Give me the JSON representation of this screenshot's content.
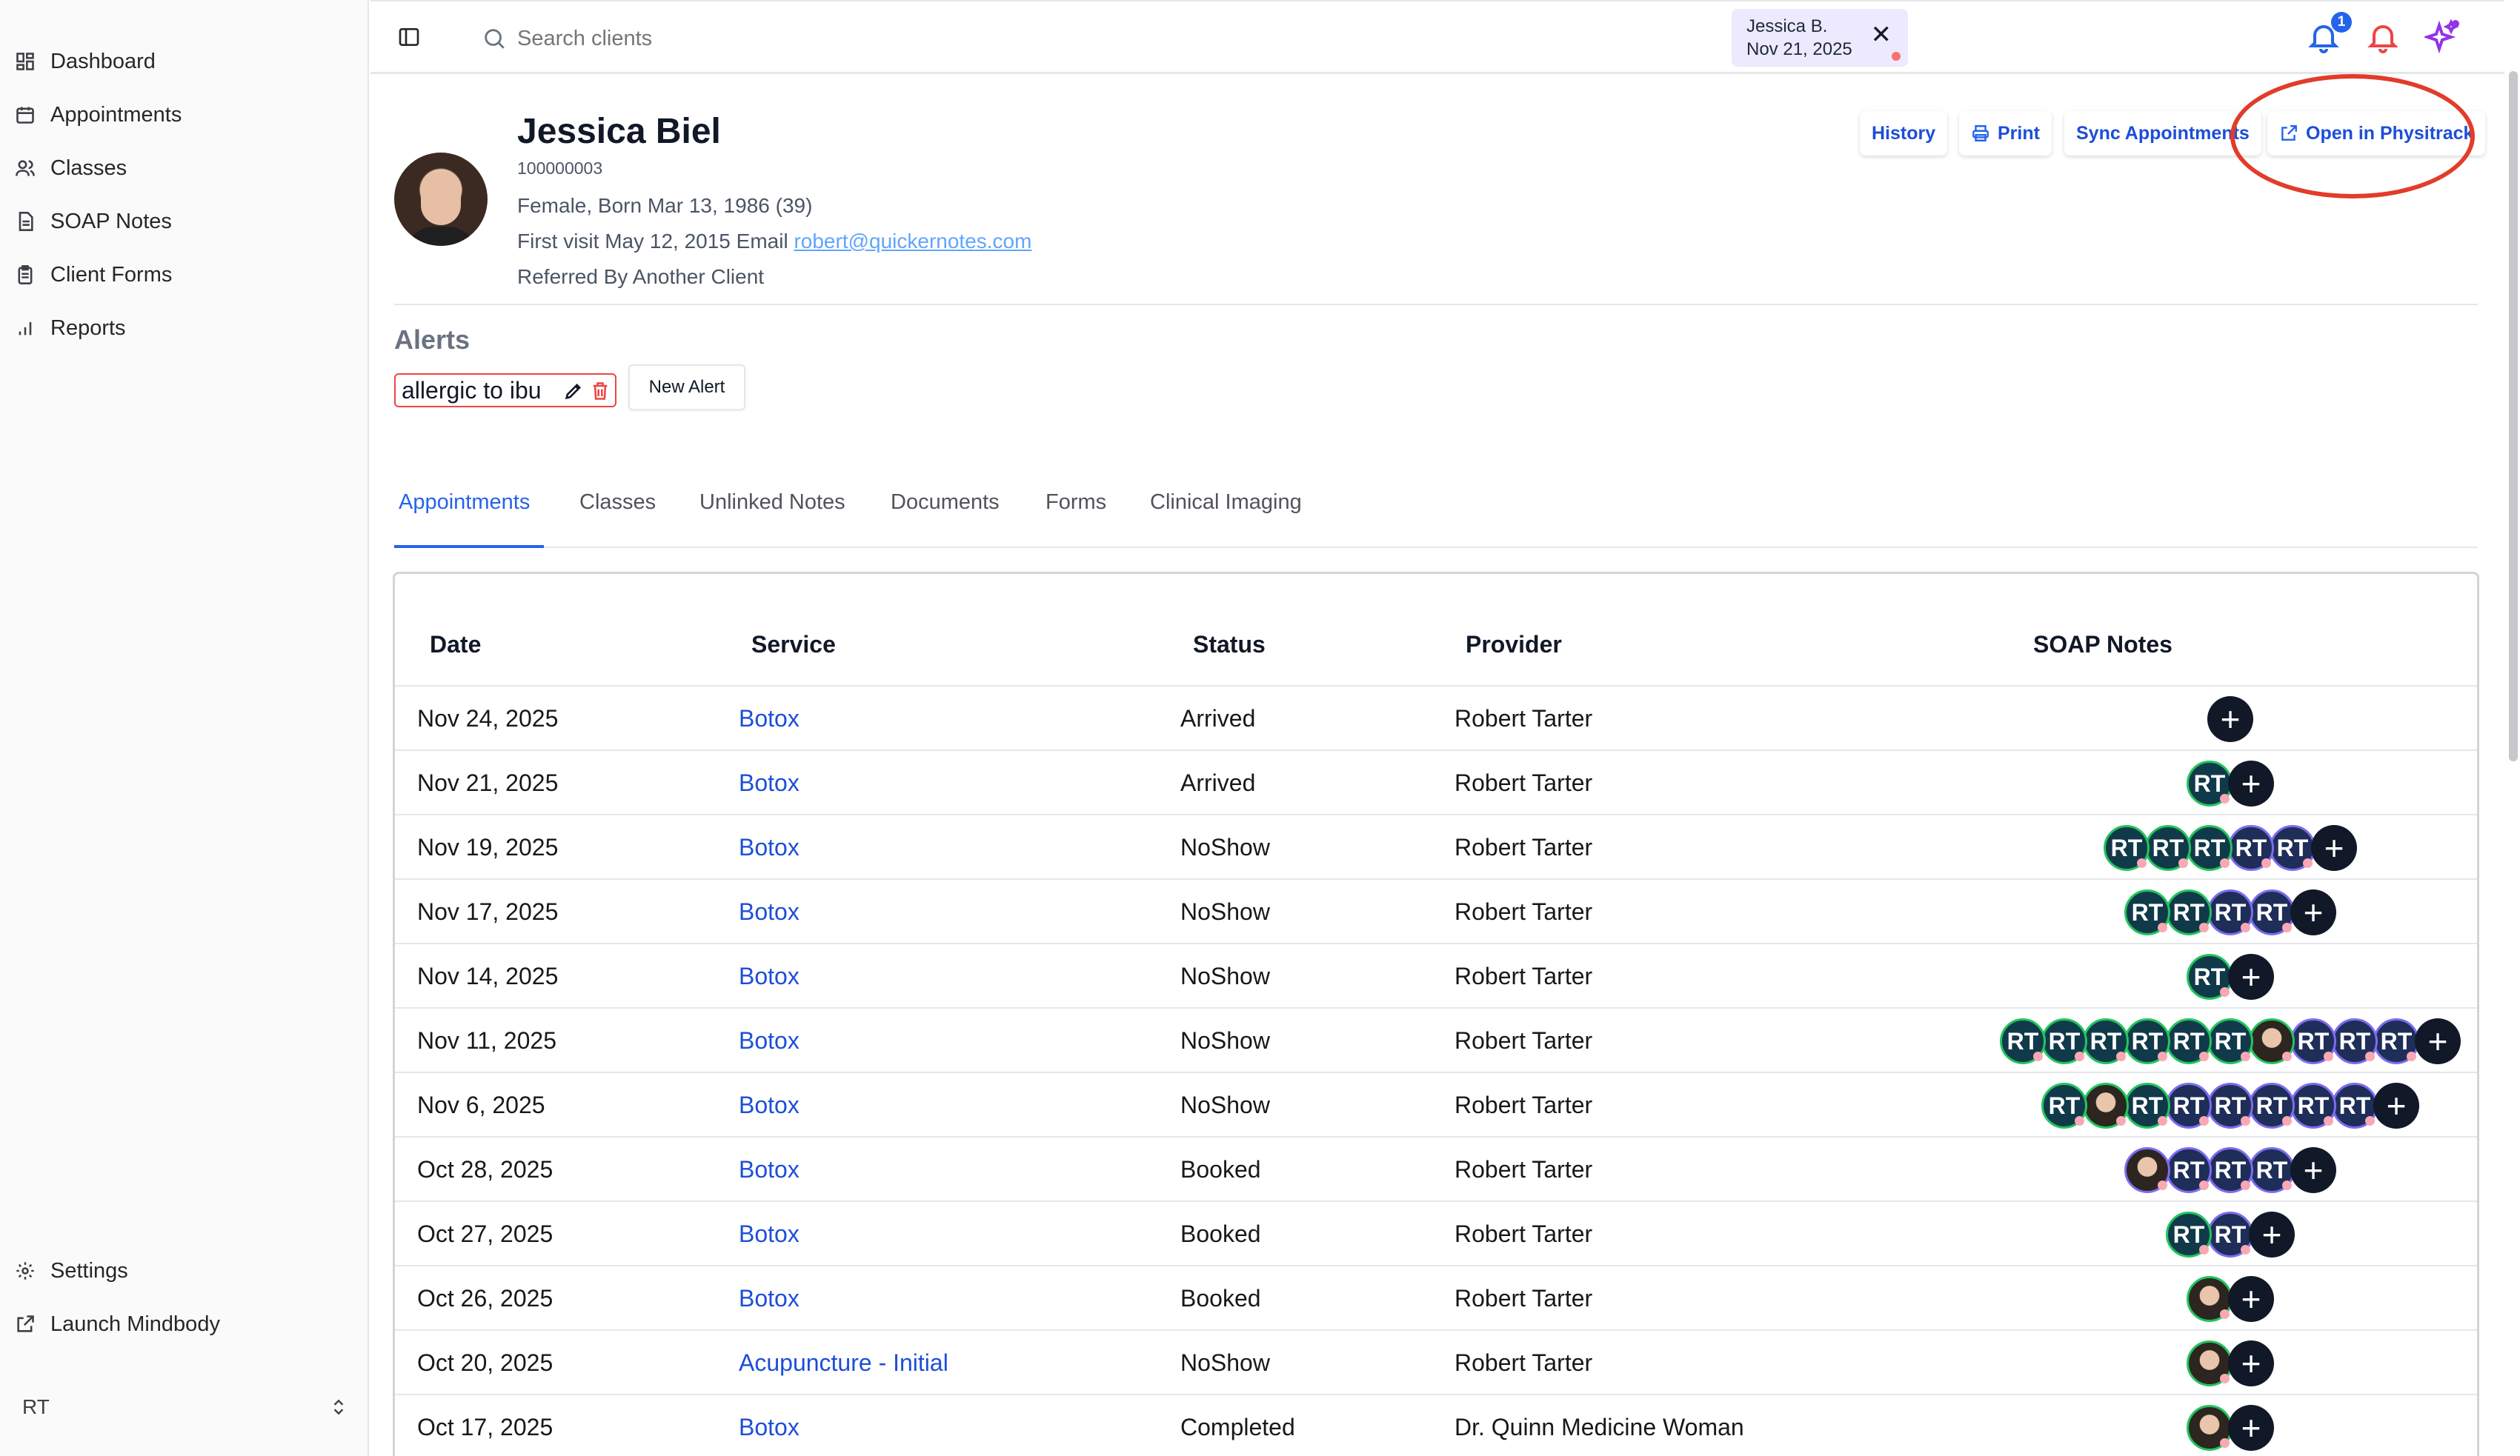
{
  "sidebar": {
    "items": [
      {
        "label": "Dashboard",
        "icon": "dashboard-icon"
      },
      {
        "label": "Appointments",
        "icon": "calendar-icon"
      },
      {
        "label": "Classes",
        "icon": "users-icon"
      },
      {
        "label": "SOAP Notes",
        "icon": "notes-icon"
      },
      {
        "label": "Client Forms",
        "icon": "clipboard-icon"
      },
      {
        "label": "Reports",
        "icon": "bar-chart-icon"
      }
    ],
    "bottom": [
      {
        "label": "Settings",
        "icon": "gear-icon"
      },
      {
        "label": "Launch Mindbody",
        "icon": "external-link-icon"
      }
    ],
    "user_initials": "RT"
  },
  "topbar": {
    "search_placeholder": "Search clients",
    "chip_name": "Jessica B.",
    "chip_date": "Nov 21, 2025",
    "notification_count": "1"
  },
  "client": {
    "name": "Jessica Biel",
    "id": "100000003",
    "demographics": "Female, Born Mar 13, 1986 (39)",
    "first_visit": "First visit May 12, 2015 Email",
    "email": "robert@quickernotes.com",
    "referred": "Referred By Another Client"
  },
  "actions": {
    "history": "History",
    "print": "Print",
    "sync": "Sync Appointments",
    "open": "Open in Physitrack"
  },
  "alerts": {
    "title": "Alerts",
    "items": [
      "allergic to ibu"
    ],
    "new_label": "New Alert"
  },
  "tabs": [
    "Appointments",
    "Classes",
    "Unlinked Notes",
    "Documents",
    "Forms",
    "Clinical Imaging"
  ],
  "table": {
    "headers": [
      "Date",
      "Service",
      "Status",
      "Provider",
      "SOAP Notes"
    ],
    "rows": [
      {
        "date": "Nov 24, 2025",
        "service": "Botox",
        "status": "Arrived",
        "provider": "Robert Tarter",
        "notes": []
      },
      {
        "date": "Nov 21, 2025",
        "service": "Botox",
        "status": "Arrived",
        "provider": "Robert Tarter",
        "notes": [
          "rt-g"
        ]
      },
      {
        "date": "Nov 19, 2025",
        "service": "Botox",
        "status": "NoShow",
        "provider": "Robert Tarter",
        "notes": [
          "rt-g",
          "rt-g",
          "rt-g",
          "rt-p",
          "rt-p"
        ]
      },
      {
        "date": "Nov 17, 2025",
        "service": "Botox",
        "status": "NoShow",
        "provider": "Robert Tarter",
        "notes": [
          "rt-g",
          "rt-g",
          "rt-p",
          "rt-p"
        ]
      },
      {
        "date": "Nov 14, 2025",
        "service": "Botox",
        "status": "NoShow",
        "provider": "Robert Tarter",
        "notes": [
          "rt-g"
        ]
      },
      {
        "date": "Nov 11, 2025",
        "service": "Botox",
        "status": "NoShow",
        "provider": "Robert Tarter",
        "notes": [
          "rt-g",
          "rt-g",
          "rt-g",
          "rt-g",
          "rt-g",
          "rt-g",
          "face",
          "rt-p",
          "rt-p",
          "rt-p"
        ]
      },
      {
        "date": "Nov 6, 2025",
        "service": "Botox",
        "status": "NoShow",
        "provider": "Robert Tarter",
        "notes": [
          "rt-g",
          "face",
          "rt-g",
          "rt-p",
          "rt-p",
          "rt-p",
          "rt-p",
          "rt-p"
        ]
      },
      {
        "date": "Oct 28, 2025",
        "service": "Botox",
        "status": "Booked",
        "provider": "Robert Tarter",
        "notes": [
          "face-p",
          "rt-p",
          "rt-p",
          "rt-p"
        ]
      },
      {
        "date": "Oct 27, 2025",
        "service": "Botox",
        "status": "Booked",
        "provider": "Robert Tarter",
        "notes": [
          "rt-g",
          "rt-p"
        ]
      },
      {
        "date": "Oct 26, 2025",
        "service": "Botox",
        "status": "Booked",
        "provider": "Robert Tarter",
        "notes": [
          "face"
        ]
      },
      {
        "date": "Oct 20, 2025",
        "service": "Acupuncture - Initial",
        "status": "NoShow",
        "provider": "Robert Tarter",
        "notes": [
          "face"
        ]
      },
      {
        "date": "Oct 17, 2025",
        "service": "Botox",
        "status": "Completed",
        "provider": "Dr. Quinn Medicine Woman",
        "notes": [
          "face"
        ]
      }
    ]
  },
  "avatar_initials": "RT",
  "plus_symbol": "+",
  "colors": {
    "accent": "#2563eb",
    "alert_border": "#ef4444",
    "annotation": "#e23c2a",
    "note_green": "#22c55e",
    "note_purple": "#7c6cf0"
  }
}
